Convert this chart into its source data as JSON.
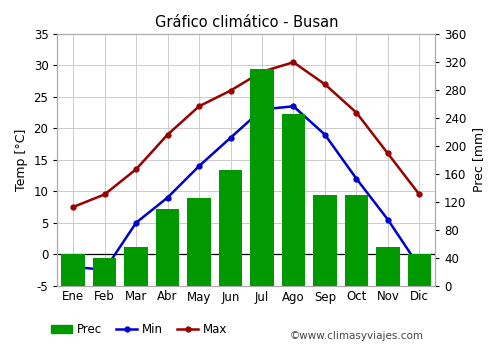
{
  "title": "Gráfico climático - Busan",
  "months": [
    "Ene",
    "Feb",
    "Mar",
    "Abr",
    "May",
    "Jun",
    "Jul",
    "Ago",
    "Sep",
    "Oct",
    "Nov",
    "Dic"
  ],
  "prec": [
    45,
    40,
    55,
    110,
    125,
    165,
    310,
    245,
    130,
    130,
    55,
    45
  ],
  "temp_min": [
    -2,
    -2.5,
    5,
    9,
    14,
    18.5,
    23,
    23.5,
    19,
    12,
    5.5,
    -2
  ],
  "temp_max": [
    7.5,
    9.5,
    13.5,
    19,
    23.5,
    26,
    29,
    30.5,
    27,
    22.5,
    16,
    9.5
  ],
  "bar_color": "#009900",
  "line_min_color": "#0000CC",
  "line_max_color": "#990000",
  "temp_ylim": [
    -5,
    35
  ],
  "prec_ylim": [
    0,
    360
  ],
  "temp_yticks": [
    -5,
    0,
    5,
    10,
    15,
    20,
    25,
    30,
    35
  ],
  "prec_yticks": [
    0,
    40,
    80,
    120,
    160,
    200,
    240,
    280,
    320,
    360
  ],
  "ylabel_left": "Temp [°C]",
  "ylabel_right": "Prec [mm]",
  "watermark": "©www.climasyviajes.com",
  "legend_labels": [
    "Prec",
    "Min",
    "Max"
  ],
  "background_color": "#ffffff",
  "grid_color": "#cccccc",
  "figsize": [
    5.0,
    3.5
  ],
  "dpi": 100
}
